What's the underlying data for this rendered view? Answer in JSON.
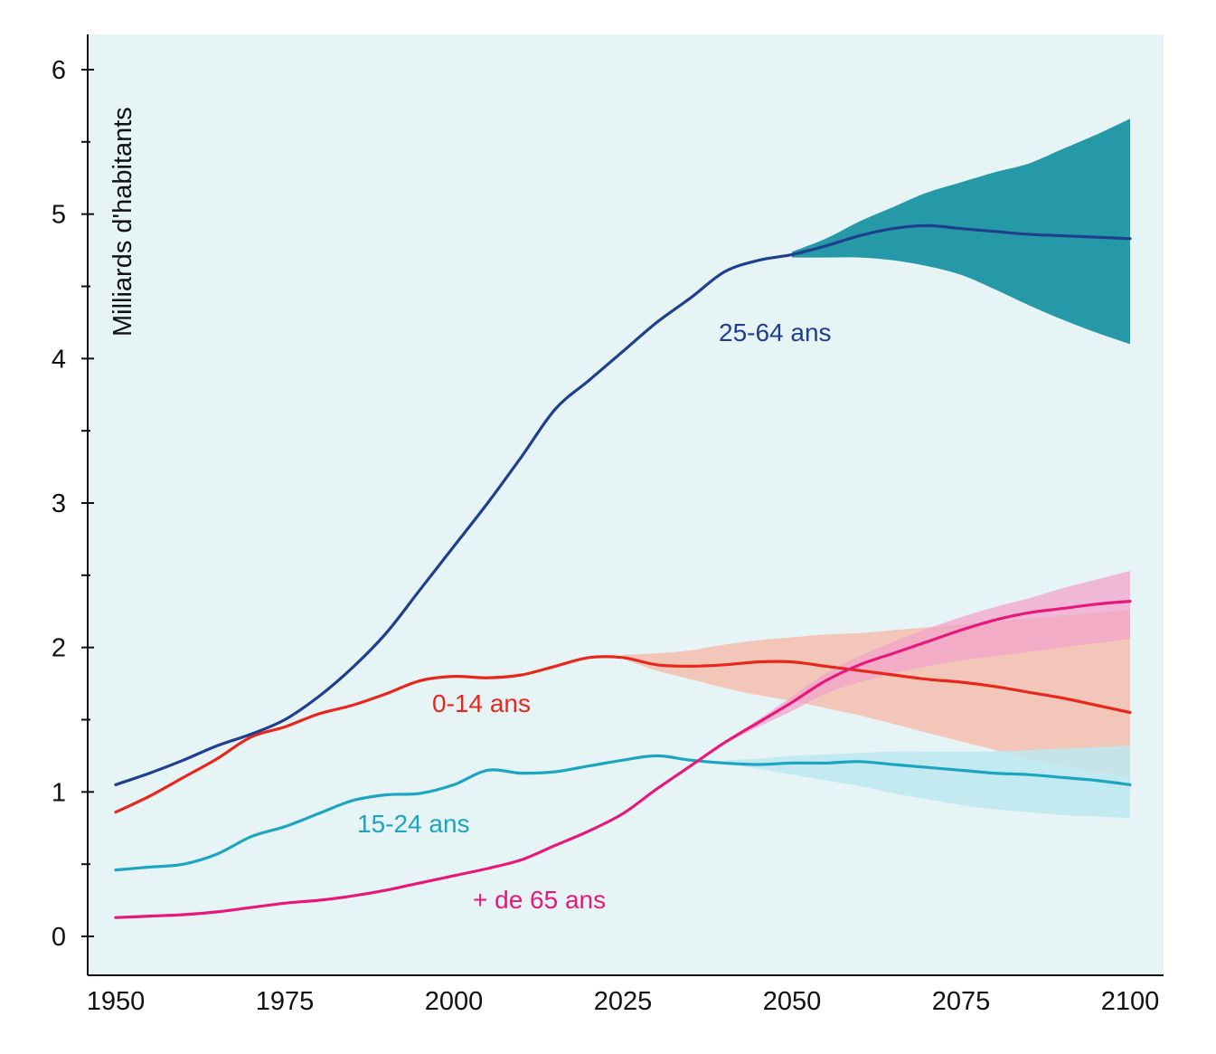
{
  "chart_data": {
    "type": "line",
    "title": "",
    "xlabel": "",
    "ylabel": "Milliards d'habitants",
    "xlim": [
      1950,
      2100
    ],
    "ylim": [
      0,
      6
    ],
    "x_ticks": [
      1950,
      1975,
      2000,
      2025,
      2050,
      2075,
      2100
    ],
    "x_tick_labels": [
      "1950",
      "1975",
      "2000",
      "2025",
      "2050",
      "2075",
      "2100"
    ],
    "y_ticks": [
      0,
      1,
      2,
      3,
      4,
      5,
      6
    ],
    "y_tick_labels": [
      "0",
      "1",
      "2",
      "3",
      "4",
      "5",
      "6"
    ],
    "grid": false,
    "background_color": "#e6f4f6",
    "series": [
      {
        "name": "25-64 ans",
        "color": "#1f3f8c",
        "band_color": "#1a93a3",
        "band_opacity": 0.95,
        "x": [
          1950,
          1955,
          1960,
          1965,
          1970,
          1975,
          1980,
          1985,
          1990,
          1995,
          2000,
          2005,
          2010,
          2015,
          2020,
          2025,
          2030,
          2035,
          2040,
          2045,
          2050,
          2055,
          2060,
          2065,
          2070,
          2075,
          2080,
          2085,
          2090,
          2095,
          2100
        ],
        "values": [
          1.05,
          1.13,
          1.22,
          1.32,
          1.4,
          1.5,
          1.66,
          1.86,
          2.1,
          2.4,
          2.7,
          3.0,
          3.32,
          3.65,
          3.85,
          4.05,
          4.25,
          4.42,
          4.6,
          4.68,
          4.72,
          4.78,
          4.85,
          4.9,
          4.92,
          4.9,
          4.88,
          4.86,
          4.85,
          4.84,
          4.83
        ],
        "band_x": [
          2050,
          2055,
          2060,
          2065,
          2070,
          2075,
          2080,
          2085,
          2090,
          2095,
          2100
        ],
        "band_lower": [
          4.7,
          4.7,
          4.7,
          4.68,
          4.64,
          4.58,
          4.48,
          4.37,
          4.27,
          4.18,
          4.1
        ],
        "band_upper": [
          4.74,
          4.83,
          4.95,
          5.05,
          5.15,
          5.22,
          5.29,
          5.35,
          5.45,
          5.55,
          5.66
        ]
      },
      {
        "name": "0-14 ans",
        "color": "#e8271c",
        "band_color": "#f6b8a4",
        "band_opacity": 0.75,
        "x": [
          1950,
          1955,
          1960,
          1965,
          1970,
          1975,
          1980,
          1985,
          1990,
          1995,
          2000,
          2005,
          2010,
          2015,
          2020,
          2025,
          2030,
          2035,
          2040,
          2045,
          2050,
          2055,
          2060,
          2065,
          2070,
          2075,
          2080,
          2085,
          2090,
          2095,
          2100
        ],
        "values": [
          0.86,
          0.97,
          1.1,
          1.23,
          1.38,
          1.45,
          1.54,
          1.6,
          1.68,
          1.77,
          1.8,
          1.79,
          1.81,
          1.87,
          1.93,
          1.93,
          1.88,
          1.87,
          1.88,
          1.9,
          1.9,
          1.87,
          1.84,
          1.81,
          1.78,
          1.76,
          1.73,
          1.69,
          1.65,
          1.6,
          1.55
        ],
        "band_x": [
          2025,
          2030,
          2035,
          2040,
          2045,
          2050,
          2055,
          2060,
          2065,
          2070,
          2075,
          2080,
          2085,
          2090,
          2095,
          2100
        ],
        "band_lower": [
          1.92,
          1.84,
          1.78,
          1.72,
          1.67,
          1.63,
          1.58,
          1.53,
          1.47,
          1.41,
          1.35,
          1.29,
          1.23,
          1.18,
          1.14,
          1.1
        ],
        "band_upper": [
          1.95,
          1.96,
          1.98,
          2.02,
          2.05,
          2.07,
          2.09,
          2.1,
          2.12,
          2.14,
          2.16,
          2.18,
          2.2,
          2.22,
          2.24,
          2.26
        ]
      },
      {
        "name": "15-24 ans",
        "color": "#1ba5c0",
        "band_color": "#bde8f0",
        "band_opacity": 0.85,
        "x": [
          1950,
          1955,
          1960,
          1965,
          1970,
          1975,
          1980,
          1985,
          1990,
          1995,
          2000,
          2005,
          2010,
          2015,
          2020,
          2025,
          2030,
          2035,
          2040,
          2045,
          2050,
          2055,
          2060,
          2065,
          2070,
          2075,
          2080,
          2085,
          2090,
          2095,
          2100
        ],
        "values": [
          0.46,
          0.48,
          0.5,
          0.57,
          0.69,
          0.76,
          0.85,
          0.94,
          0.98,
          0.99,
          1.05,
          1.15,
          1.13,
          1.14,
          1.18,
          1.22,
          1.25,
          1.22,
          1.2,
          1.19,
          1.2,
          1.2,
          1.21,
          1.19,
          1.17,
          1.15,
          1.13,
          1.12,
          1.1,
          1.08,
          1.05
        ],
        "band_x": [
          2040,
          2045,
          2050,
          2055,
          2060,
          2065,
          2070,
          2075,
          2080,
          2085,
          2090,
          2095,
          2100
        ],
        "band_lower": [
          1.2,
          1.16,
          1.12,
          1.08,
          1.04,
          0.99,
          0.95,
          0.91,
          0.88,
          0.86,
          0.84,
          0.83,
          0.82
        ],
        "band_upper": [
          1.22,
          1.23,
          1.25,
          1.26,
          1.27,
          1.28,
          1.28,
          1.28,
          1.28,
          1.29,
          1.3,
          1.31,
          1.32
        ]
      },
      {
        "name": "+ de 65 ans",
        "color": "#e5197a",
        "band_color": "#f3a3cb",
        "band_opacity": 0.75,
        "x": [
          1950,
          1955,
          1960,
          1965,
          1970,
          1975,
          1980,
          1985,
          1990,
          1995,
          2000,
          2005,
          2010,
          2015,
          2020,
          2025,
          2030,
          2035,
          2040,
          2045,
          2050,
          2055,
          2060,
          2065,
          2070,
          2075,
          2080,
          2085,
          2090,
          2095,
          2100
        ],
        "values": [
          0.13,
          0.14,
          0.15,
          0.17,
          0.2,
          0.23,
          0.25,
          0.28,
          0.32,
          0.37,
          0.42,
          0.47,
          0.53,
          0.63,
          0.73,
          0.85,
          1.02,
          1.18,
          1.34,
          1.48,
          1.62,
          1.77,
          1.88,
          1.96,
          2.04,
          2.12,
          2.19,
          2.24,
          2.27,
          2.3,
          2.32
        ],
        "band_x": [
          2040,
          2045,
          2050,
          2055,
          2060,
          2065,
          2070,
          2075,
          2080,
          2085,
          2090,
          2095,
          2100
        ],
        "band_lower": [
          1.33,
          1.45,
          1.56,
          1.68,
          1.76,
          1.82,
          1.87,
          1.91,
          1.94,
          1.97,
          2.0,
          2.03,
          2.06
        ],
        "band_upper": [
          1.35,
          1.5,
          1.66,
          1.82,
          1.94,
          2.04,
          2.13,
          2.21,
          2.28,
          2.34,
          2.41,
          2.47,
          2.53
        ]
      }
    ]
  },
  "annotations": {
    "label_25_64": "25-64 ans",
    "label_0_14": "0-14 ans",
    "label_15_24": "15-24 ans",
    "label_65": "+ de 65 ans"
  }
}
